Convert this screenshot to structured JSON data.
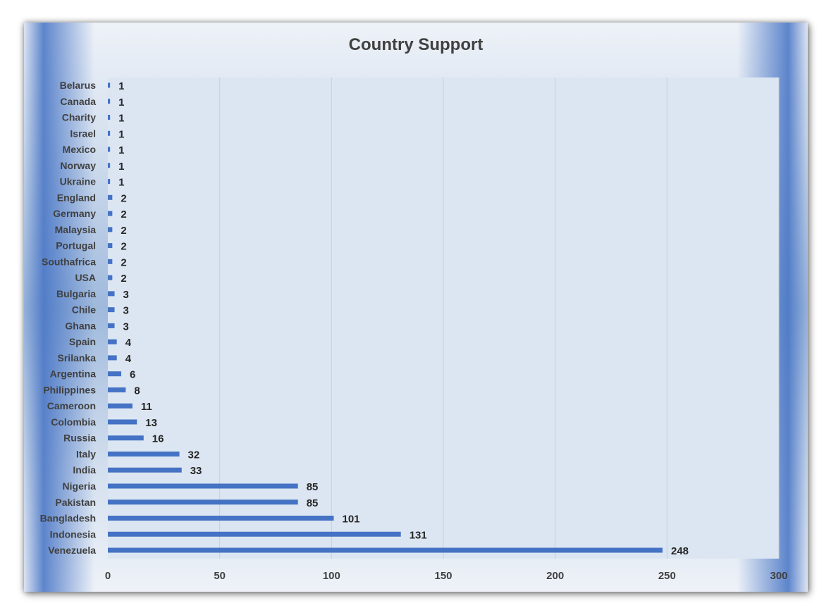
{
  "chart_data": {
    "type": "bar",
    "orientation": "horizontal",
    "title": "Country Support",
    "xlabel": "",
    "ylabel": "",
    "xlim": [
      0,
      300
    ],
    "xticks": [
      "0",
      "50",
      "100",
      "150",
      "200",
      "250",
      "300"
    ],
    "grid": true,
    "legend": "none",
    "bar_color": "#4472c4",
    "categories": [
      "Belarus",
      "Canada",
      "Charity",
      "Israel",
      "Mexico",
      "Norway",
      "Ukraine",
      "England",
      "Germany",
      "Malaysia",
      "Portugal",
      "Southafrica",
      "USA",
      "Bulgaria",
      "Chile",
      "Ghana",
      "Spain",
      "Srilanka",
      "Argentina",
      "Philippines",
      "Cameroon",
      "Colombia",
      "Russia",
      "Italy",
      "India",
      "Nigeria",
      "Pakistan",
      "Bangladesh",
      "Indonesia",
      "Venezuela"
    ],
    "values": [
      1,
      1,
      1,
      1,
      1,
      1,
      1,
      2,
      2,
      2,
      2,
      2,
      2,
      3,
      3,
      3,
      4,
      4,
      6,
      8,
      11,
      13,
      16,
      32,
      33,
      85,
      85,
      101,
      131,
      248
    ]
  }
}
